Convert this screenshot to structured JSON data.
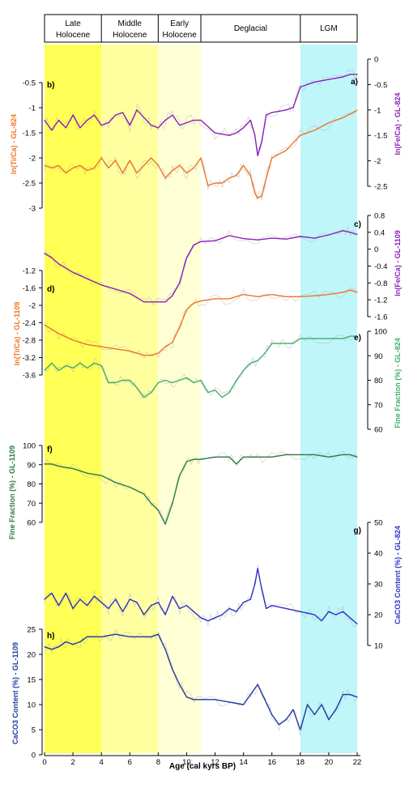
{
  "colors": {
    "late_holocene": "#ffff55",
    "middle_holocene": "#ffffa0",
    "early_holocene": "#ffffd6",
    "lgm": "#bff6f9",
    "orange": "#f07423",
    "purple": "#8b1fb6",
    "green": "#3fae6a",
    "darkgreen": "#2b7a46",
    "blue": "#3030c8",
    "navy": "#1e3a9e",
    "grey": "#b8b8b8"
  },
  "periods": [
    {
      "label_lines": [
        "Late",
        "Holocene"
      ],
      "start": 0,
      "end": 4,
      "color_key": "late_holocene"
    },
    {
      "label_lines": [
        "Middle",
        "Holocene"
      ],
      "start": 4,
      "end": 8,
      "color_key": "middle_holocene"
    },
    {
      "label_lines": [
        "Early",
        "Holocene"
      ],
      "start": 8,
      "end": 11,
      "color_key": "early_holocene"
    },
    {
      "label_lines": [
        "Deglacial"
      ],
      "start": 11,
      "end": 18,
      "color_key": "none"
    },
    {
      "label_lines": [
        "LGM"
      ],
      "start": 18,
      "end": 22,
      "color_key": "lgm"
    }
  ],
  "x_axis": {
    "label": "Age (cal kyrs BP)",
    "ticks": [
      "0",
      "2",
      "4",
      "6",
      "8",
      "10",
      "12",
      "14",
      "16",
      "18",
      "20",
      "22"
    ]
  },
  "chart_data": [
    {
      "type": "line",
      "panel": "a)",
      "ylabel": "ln(Fe/Ca) - GL-824",
      "axis_side": "right",
      "ylim": [
        -2.5,
        0
      ],
      "y_ticks": [
        "0",
        "-0.5",
        "-1",
        "-1.5",
        "-2",
        "-2.5"
      ],
      "color_key": "purple",
      "x": [
        0,
        0.5,
        1,
        1.5,
        2,
        2.5,
        3,
        3.5,
        4,
        4.5,
        5,
        5.5,
        6,
        6.5,
        7,
        7.5,
        8,
        8.5,
        9,
        9.5,
        10,
        10.5,
        11,
        12,
        13,
        13.5,
        14,
        14.5,
        14.8,
        15,
        15.3,
        15.6,
        16,
        17,
        17.5,
        18,
        18.5,
        19,
        20,
        21,
        21.5,
        22
      ],
      "values": [
        -1.2,
        -1.4,
        -1.2,
        -1.35,
        -1.1,
        -1.35,
        -1.2,
        -1.1,
        -1.3,
        -1.25,
        -1.1,
        -1.05,
        -1.3,
        -1.0,
        -1.15,
        -1.3,
        -1.35,
        -1.2,
        -1.1,
        -1.3,
        -1.25,
        -1.2,
        -1.2,
        -1.45,
        -1.5,
        -1.45,
        -1.35,
        -1.2,
        -1.5,
        -1.9,
        -1.6,
        -1.1,
        -1.05,
        -1.0,
        -0.95,
        -0.55,
        -0.5,
        -0.45,
        -0.4,
        -0.35,
        -0.3,
        -0.3
      ]
    },
    {
      "type": "line",
      "panel": "b)",
      "ylabel": "ln(Ti/Ca) - GL-824",
      "axis_side": "left",
      "ylim": [
        -3,
        -0.5
      ],
      "y_ticks": [
        "-0.5",
        "-1",
        "-1.5",
        "-2",
        "-2.5",
        "-3"
      ],
      "color_key": "orange",
      "x": [
        0,
        0.5,
        1,
        1.5,
        2,
        2.5,
        3,
        3.5,
        4,
        4.5,
        5,
        5.5,
        6,
        6.5,
        7,
        7.5,
        8,
        8.5,
        9,
        9.5,
        10,
        10.5,
        11,
        11.5,
        12,
        12.5,
        13,
        13.5,
        14,
        14.5,
        14.8,
        15.0,
        15.3,
        15.6,
        16,
        17,
        18,
        19,
        20,
        21,
        22
      ],
      "values": [
        -2.15,
        -2.2,
        -2.15,
        -2.3,
        -2.2,
        -2.15,
        -2.25,
        -2.2,
        -2.0,
        -2.2,
        -2.05,
        -2.3,
        -2.05,
        -2.3,
        -2.15,
        -2.0,
        -2.15,
        -2.4,
        -2.25,
        -2.15,
        -2.3,
        -2.2,
        -2.0,
        -2.55,
        -2.5,
        -2.5,
        -2.4,
        -2.35,
        -2.15,
        -2.35,
        -2.7,
        -2.8,
        -2.75,
        -2.4,
        -2.0,
        -1.85,
        -1.55,
        -1.45,
        -1.3,
        -1.2,
        -1.05
      ]
    },
    {
      "type": "line",
      "panel": "c)",
      "ylabel": "ln(Fe/Ca) - GL-1109",
      "axis_side": "right",
      "ylim": [
        -1.6,
        0.8
      ],
      "y_ticks": [
        "0.8",
        "0.4",
        "0",
        "-0.4",
        "-0.8",
        "-1.2",
        "-1.6"
      ],
      "color_key": "purple",
      "x": [
        0,
        0.5,
        1,
        2,
        3,
        4,
        5,
        6,
        7,
        7.5,
        8,
        8.5,
        9,
        9.5,
        10,
        10.5,
        11,
        12,
        13,
        14,
        15,
        16,
        17,
        18,
        19,
        20,
        21,
        21.5,
        22
      ],
      "values": [
        -0.1,
        -0.2,
        -0.35,
        -0.55,
        -0.7,
        -0.85,
        -0.95,
        -1.05,
        -1.25,
        -1.25,
        -1.25,
        -1.25,
        -1.1,
        -0.8,
        -0.2,
        0.1,
        0.18,
        0.2,
        0.32,
        0.25,
        0.22,
        0.26,
        0.24,
        0.3,
        0.26,
        0.34,
        0.44,
        0.4,
        0.35
      ]
    },
    {
      "type": "line",
      "panel": "d)",
      "ylabel": "ln(Ti/Ca) - GL-1109",
      "axis_side": "left",
      "ylim": [
        -3.6,
        -1.2
      ],
      "y_ticks": [
        "-1.2",
        "-1.6",
        "-2",
        "-2.4",
        "-2.8",
        "-3.2",
        "-3.6"
      ],
      "color_key": "orange",
      "x": [
        0,
        0.5,
        1,
        2,
        3,
        4,
        5,
        6,
        7,
        7.5,
        8,
        8.5,
        9,
        9.5,
        10,
        10.5,
        11,
        12,
        13,
        14,
        15,
        16,
        17,
        18,
        19,
        20,
        21,
        21.5,
        22
      ],
      "values": [
        -2.45,
        -2.55,
        -2.65,
        -2.8,
        -2.9,
        -2.95,
        -3.0,
        -3.05,
        -3.15,
        -3.15,
        -3.1,
        -2.95,
        -2.85,
        -2.5,
        -2.1,
        -1.95,
        -1.9,
        -1.85,
        -1.85,
        -1.75,
        -1.8,
        -1.75,
        -1.8,
        -1.8,
        -1.78,
        -1.75,
        -1.7,
        -1.65,
        -1.7
      ]
    },
    {
      "type": "line",
      "panel": "e)",
      "ylabel": "Fine Fraction (%) - GL-824",
      "axis_side": "right",
      "ylim": [
        60,
        100
      ],
      "y_ticks": [
        "100",
        "90",
        "80",
        "70",
        "60"
      ],
      "color_key": "green",
      "x": [
        0,
        0.5,
        1,
        1.5,
        2,
        2.5,
        3,
        3.5,
        4,
        4.5,
        5,
        5.5,
        6,
        6.5,
        7,
        7.5,
        8,
        8.5,
        9,
        9.5,
        10,
        10.5,
        11,
        11.5,
        12,
        12.5,
        13,
        13.5,
        14,
        14.5,
        15,
        15.5,
        16,
        16.5,
        17,
        17.5,
        18,
        19,
        20,
        21,
        21.5,
        22
      ],
      "values": [
        84,
        87,
        84,
        86,
        85,
        87,
        85,
        87,
        86,
        79,
        79,
        80,
        80,
        77,
        73,
        75,
        79,
        80,
        79,
        80,
        81,
        79,
        80,
        75,
        76,
        73,
        75,
        80,
        84,
        87,
        88,
        91,
        95,
        95,
        95,
        95,
        97,
        97,
        97,
        97,
        98,
        98
      ]
    },
    {
      "type": "line",
      "panel": "f)",
      "ylabel": "Fine Fraction (%) - GL-1109",
      "axis_side": "left",
      "ylim": [
        50,
        100
      ],
      "y_ticks": [
        "100",
        "90",
        "80",
        "70",
        "60"
      ],
      "color_key": "darkgreen",
      "x": [
        0,
        0.5,
        1,
        2,
        3,
        4,
        5,
        6,
        7,
        7.5,
        8,
        8.5,
        9,
        9.5,
        10,
        10.5,
        11,
        12,
        13,
        13.5,
        14,
        14.5,
        15,
        16,
        17,
        18,
        19,
        20,
        21,
        21.5,
        22
      ],
      "values": [
        92,
        92,
        91,
        90,
        88,
        87,
        84,
        82,
        79,
        75,
        72,
        66,
        75,
        87,
        93,
        94,
        94,
        95,
        95,
        92,
        95,
        95,
        95,
        95,
        96,
        96,
        96,
        95,
        96,
        96,
        95
      ]
    },
    {
      "type": "line",
      "panel": "g)",
      "ylabel": "CaCO3 Content (%) - GL-824",
      "axis_side": "right",
      "ylim": [
        10,
        50
      ],
      "y_ticks": [
        "50",
        "40",
        "30",
        "20",
        "10"
      ],
      "color_key": "blue",
      "x": [
        0,
        0.5,
        1,
        1.5,
        2,
        2.5,
        3,
        3.5,
        4,
        4.5,
        5,
        5.5,
        6,
        6.5,
        7,
        7.5,
        8,
        8.5,
        9,
        9.5,
        10,
        10.5,
        11,
        11.5,
        12,
        12.5,
        13,
        13.5,
        14,
        14.5,
        14.8,
        15,
        15.3,
        15.6,
        16,
        17,
        18,
        19,
        19.5,
        20,
        20.5,
        21,
        21.5,
        22
      ],
      "values": [
        25,
        27,
        23,
        27,
        22,
        25,
        23,
        26,
        24,
        22,
        25,
        21,
        25,
        24,
        20,
        23,
        24,
        20,
        26,
        22,
        23,
        21,
        19,
        18,
        19,
        20,
        22,
        21,
        24,
        25,
        30,
        35,
        28,
        22,
        23,
        22,
        21,
        20,
        18,
        21,
        20,
        21,
        19,
        17
      ]
    },
    {
      "type": "line",
      "panel": "h)",
      "ylabel": "CaCO3 Content (%) - GL-1109",
      "axis_side": "left",
      "ylim": [
        0,
        25
      ],
      "y_ticks": [
        "25",
        "20",
        "15",
        "10",
        "5",
        "0"
      ],
      "color_key": "navy",
      "x": [
        0,
        0.5,
        1,
        1.5,
        2,
        2.5,
        3,
        3.5,
        4,
        5,
        6,
        7,
        7.5,
        8,
        8.5,
        9,
        9.5,
        10,
        10.5,
        11,
        12,
        13,
        14,
        14.5,
        15,
        15.5,
        16,
        16.5,
        17,
        17.5,
        18,
        18.5,
        19,
        19.5,
        20,
        20.5,
        21,
        21.5,
        22
      ],
      "values": [
        21.5,
        21,
        21.5,
        22.5,
        22,
        22.5,
        23.5,
        23.5,
        23.5,
        24,
        23.5,
        23.5,
        23.5,
        24,
        21,
        17,
        14,
        11.5,
        11,
        11,
        11,
        10.5,
        10,
        12,
        14,
        11,
        8,
        6,
        7,
        9,
        5,
        10,
        8,
        10,
        7,
        9,
        12,
        12,
        11.5
      ]
    }
  ]
}
